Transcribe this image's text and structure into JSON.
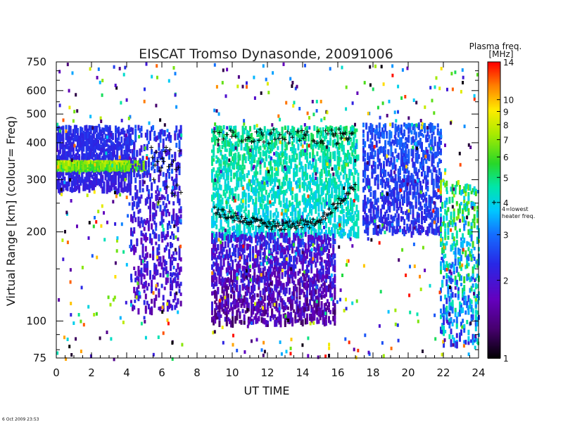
{
  "chart_data": {
    "type": "heatmap",
    "title": "EISCAT Tromso Dynasonde,   20091006",
    "xlabel": "UT TIME",
    "ylabel": "Virtual Range [km]   (colour= Freq)",
    "x_ticks": [
      "0",
      "2",
      "4",
      "6",
      "8",
      "10",
      "12",
      "14",
      "16",
      "18",
      "20",
      "22",
      "24"
    ],
    "y_ticks": [
      "750",
      "600",
      "500",
      "400",
      "300",
      "200",
      "100",
      "75"
    ],
    "y_tick_values": [
      750,
      600,
      500,
      400,
      300,
      200,
      100,
      75
    ],
    "xlim": [
      0,
      24
    ],
    "ylim": [
      75,
      750
    ],
    "y_scale": "log",
    "colorbar": {
      "title": "Plasma freq.",
      "unit": "[MHz]",
      "ticks": [
        "14",
        "10",
        "9",
        "8",
        "7",
        "6",
        "5",
        "4",
        "3",
        "2",
        "1"
      ],
      "tick_values": [
        14,
        10,
        9,
        8,
        7,
        6,
        5,
        4,
        3,
        2,
        1
      ],
      "range": [
        1,
        14
      ],
      "scale": "log",
      "annotation_lines": [
        "4=lowest",
        "heater freq."
      ],
      "annotation_value": 4
    },
    "data_gaps_ut": [
      [
        7.1,
        8.8
      ],
      [
        17.1,
        17.4
      ]
    ],
    "series": [
      {
        "time_range": [
          0,
          4.2
        ],
        "range_km": [
          280,
          460
        ],
        "freq_mhz": [
          2.0,
          2.6
        ]
      },
      {
        "time_range": [
          0,
          5.0
        ],
        "range_km": [
          335,
          350
        ],
        "freq_mhz": [
          5.0,
          9.0
        ]
      },
      {
        "time_range": [
          4.2,
          7.1
        ],
        "range_km": [
          110,
          460
        ],
        "freq_mhz": [
          1.5,
          3.0
        ]
      },
      {
        "time_range": [
          8.8,
          17.1
        ],
        "range_km": [
          195,
          460
        ],
        "freq_mhz": [
          3.5,
          5.5
        ]
      },
      {
        "time_range": [
          8.8,
          15.8
        ],
        "range_km": [
          100,
          200
        ],
        "freq_mhz": [
          1.2,
          2.8
        ]
      },
      {
        "time_range": [
          17.4,
          21.8
        ],
        "range_km": [
          200,
          470
        ],
        "freq_mhz": [
          2.0,
          3.2
        ]
      },
      {
        "time_range": [
          21.8,
          24
        ],
        "range_km": [
          85,
          300
        ],
        "freq_mhz": [
          2.0,
          8.0
        ]
      }
    ],
    "footer": "6 Oct 2009 23:53"
  }
}
